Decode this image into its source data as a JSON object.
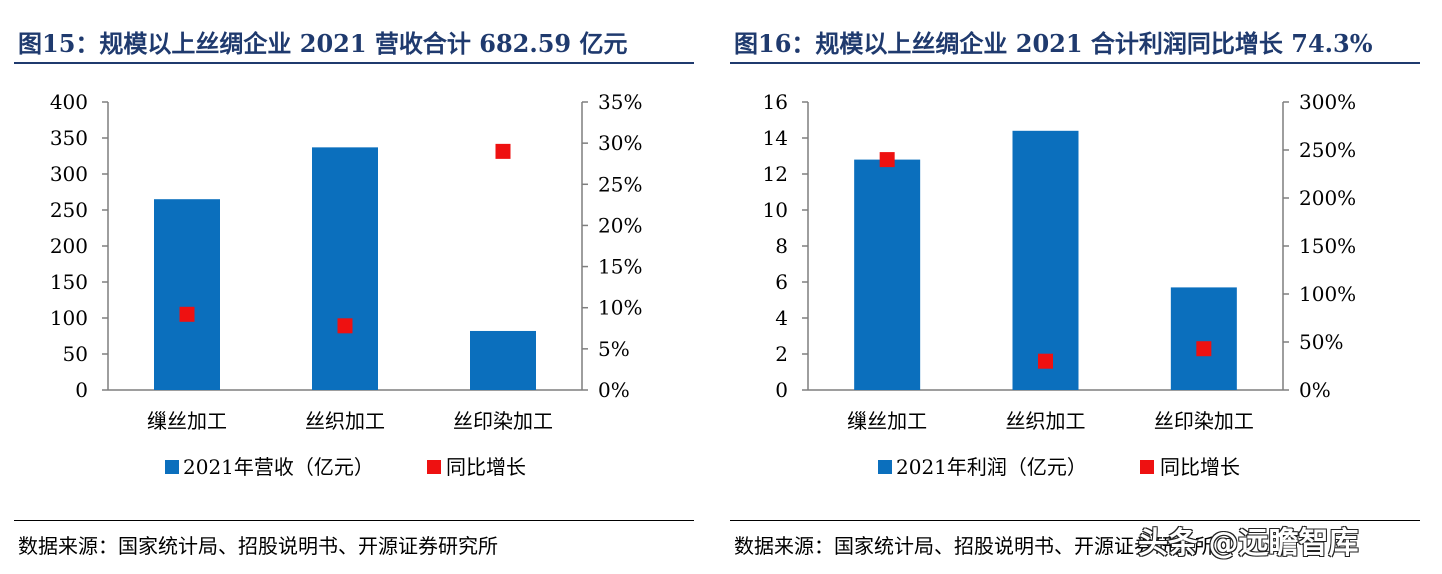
{
  "charts": [
    {
      "title": "图15：规模以上丝绸企业 2021 营收合计 682.59 亿元",
      "source": "数据来源：国家统计局、招股说明书、开源证券研究所"
    },
    {
      "title": "图16：规模以上丝绸企业 2021 合计利润同比增长 74.3%",
      "source": "数据来源：国家统计局、招股说明书、开源证券研究所"
    }
  ],
  "watermark": "头条 @远瞻智库",
  "chart_data": [
    {
      "type": "bar",
      "categories": [
        "缫丝加工",
        "丝织加工",
        "丝印染加工"
      ],
      "series": [
        {
          "name": "2021年营收（亿元）",
          "type": "bar",
          "axis": "left",
          "values": [
            265,
            337,
            82
          ],
          "color": "#0b6fbd"
        },
        {
          "name": "同比增长",
          "type": "scatter",
          "axis": "right",
          "values": [
            0.092,
            0.078,
            0.29
          ],
          "color": "#ee1111"
        }
      ],
      "left_axis": {
        "ticks": [
          "0",
          "50",
          "100",
          "150",
          "200",
          "250",
          "300",
          "350",
          "400"
        ],
        "ylim": [
          0,
          400
        ]
      },
      "right_axis": {
        "ticks": [
          "0%",
          "5%",
          "10%",
          "15%",
          "20%",
          "25%",
          "30%",
          "35%"
        ],
        "ylim": [
          0,
          0.35
        ]
      },
      "legend": "bottom"
    },
    {
      "type": "bar",
      "categories": [
        "缫丝加工",
        "丝织加工",
        "丝印染加工"
      ],
      "series": [
        {
          "name": "2021年利润（亿元）",
          "type": "bar",
          "axis": "left",
          "values": [
            12.8,
            14.4,
            5.7
          ],
          "color": "#0b6fbd"
        },
        {
          "name": "同比增长",
          "type": "scatter",
          "axis": "right",
          "values": [
            2.4,
            0.3,
            0.43
          ],
          "color": "#ee1111"
        }
      ],
      "left_axis": {
        "ticks": [
          "0",
          "2",
          "4",
          "6",
          "8",
          "10",
          "12",
          "14",
          "16"
        ],
        "ylim": [
          0,
          16
        ]
      },
      "right_axis": {
        "ticks": [
          "0%",
          "50%",
          "100%",
          "150%",
          "200%",
          "250%",
          "300%"
        ],
        "ylim": [
          0,
          3
        ]
      },
      "legend": "bottom"
    }
  ]
}
